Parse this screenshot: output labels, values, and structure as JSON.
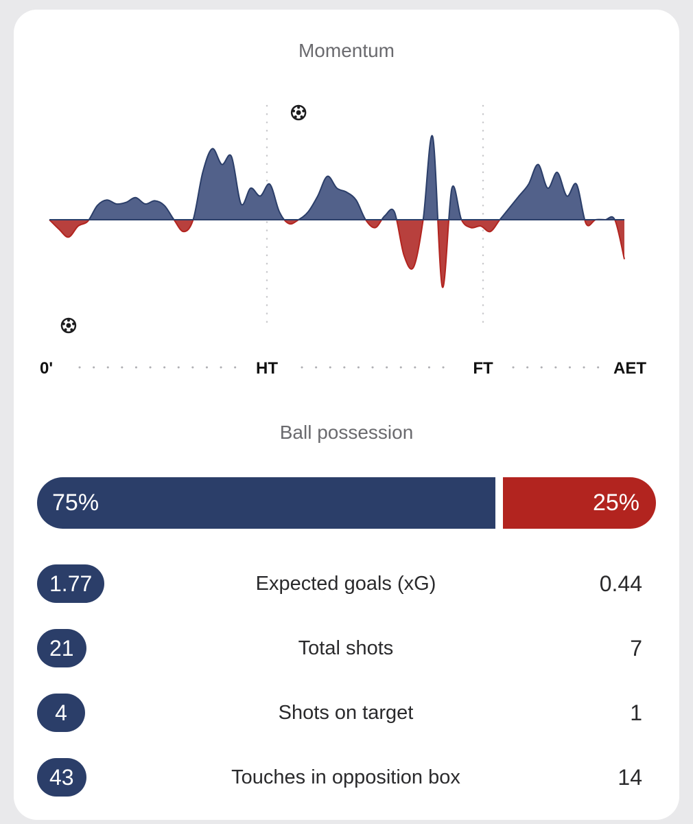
{
  "momentum": {
    "title": "Momentum",
    "time_labels": [
      "0'",
      "HT",
      "FT",
      "AET"
    ]
  },
  "possession": {
    "title": "Ball possession",
    "home_label": "75%",
    "away_label": "25%",
    "home_pct": 75,
    "away_pct": 25
  },
  "stats": [
    {
      "label": "Expected goals (xG)",
      "home": "1.77",
      "away": "0.44"
    },
    {
      "label": "Total shots",
      "home": "21",
      "away": "7"
    },
    {
      "label": "Shots on target",
      "home": "4",
      "away": "1"
    },
    {
      "label": "Touches in opposition box",
      "home": "43",
      "away": "14"
    }
  ],
  "colors": {
    "home": "#2b3e69",
    "home_area": "#52618a",
    "away": "#b2241f",
    "away_area": "#b8403d"
  },
  "chart_data": {
    "type": "area",
    "title": "Momentum",
    "x_ticks": [
      "0'",
      "HT",
      "FT",
      "AET"
    ],
    "x": [
      0,
      2,
      4,
      6,
      8,
      10,
      12,
      14,
      16,
      18,
      20,
      22,
      24,
      26,
      28,
      30,
      32,
      34,
      36,
      38,
      40,
      42,
      44,
      46,
      48,
      50,
      52,
      54,
      56,
      58,
      60,
      62,
      64,
      66,
      68,
      70,
      72,
      74,
      76,
      78,
      80,
      82,
      84,
      86,
      88,
      90,
      92,
      94,
      96,
      98,
      100,
      102,
      104,
      106,
      108,
      110,
      112,
      114,
      116,
      118,
      120
    ],
    "values": [
      0,
      -12,
      -22,
      -8,
      -2,
      18,
      25,
      20,
      22,
      28,
      20,
      24,
      18,
      0,
      -15,
      0,
      60,
      90,
      70,
      80,
      20,
      40,
      30,
      45,
      10,
      -5,
      0,
      10,
      30,
      55,
      40,
      35,
      25,
      0,
      -10,
      5,
      10,
      -45,
      -60,
      0,
      105,
      -85,
      40,
      0,
      -10,
      -8,
      -15,
      0,
      15,
      30,
      45,
      70,
      40,
      60,
      30,
      45,
      -5,
      0,
      0,
      0,
      -50
    ],
    "goal_events": [
      {
        "team": "away",
        "minute": 4
      },
      {
        "team": "home",
        "minute": 52
      }
    ],
    "ylim": [
      -100,
      100
    ]
  }
}
